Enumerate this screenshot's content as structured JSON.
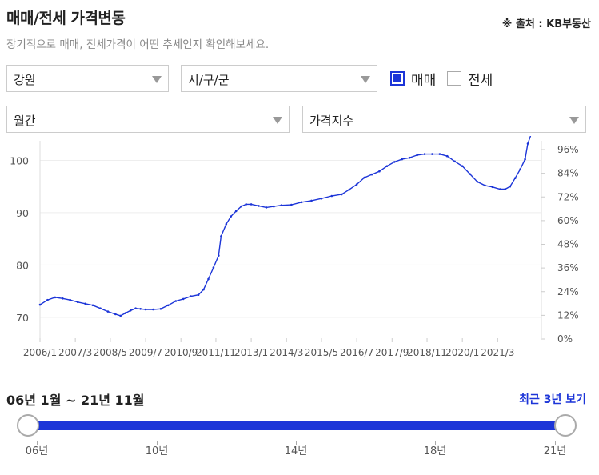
{
  "header": {
    "title": "매매/전세 가격변동",
    "source": "※ 출처 : KB부동산",
    "subtitle": "장기적으로 매매, 전세가격이 어떤 추세인지 확인해보세요."
  },
  "filters": {
    "region": "강원",
    "district": "시/구/군",
    "period": "월간",
    "index_type": "가격지수"
  },
  "checkboxes": [
    {
      "label": "매매",
      "checked": true
    },
    {
      "label": "전세",
      "checked": false
    }
  ],
  "colors": {
    "accent": "#1c35d8",
    "grid": "#eeeeee",
    "text": "#555555"
  },
  "chart_data": {
    "type": "line",
    "title": "",
    "xlabel": "",
    "ylabel": "",
    "grid": true,
    "xlim": [
      2006.0,
      2021.83
    ],
    "ylim": [
      66,
      106
    ],
    "y_ticks": [
      70,
      80,
      90,
      100
    ],
    "y2_ticks": [
      "0%",
      "12%",
      "24%",
      "36%",
      "48%",
      "60%",
      "72%",
      "84%",
      "96%"
    ],
    "x_ticks": [
      {
        "label": "2006/1",
        "x": 2006.0
      },
      {
        "label": "2007/3",
        "x": 2007.17
      },
      {
        "label": "2008/5",
        "x": 2008.33
      },
      {
        "label": "2009/7",
        "x": 2009.5
      },
      {
        "label": "2010/9",
        "x": 2010.67
      },
      {
        "label": "2011/11",
        "x": 2011.83
      },
      {
        "label": "2013/1",
        "x": 2013.0
      },
      {
        "label": "2014/3",
        "x": 2014.17
      },
      {
        "label": "2015/5",
        "x": 2015.33
      },
      {
        "label": "2016/7",
        "x": 2016.5
      },
      {
        "label": "2017/9",
        "x": 2017.67
      },
      {
        "label": "2018/11",
        "x": 2018.83
      },
      {
        "label": "2020/1",
        "x": 2020.0
      },
      {
        "label": "2021/3",
        "x": 2021.17
      }
    ],
    "series": [
      {
        "name": "매매",
        "points": [
          [
            2006.0,
            72.4
          ],
          [
            2006.25,
            73.3
          ],
          [
            2006.5,
            73.8
          ],
          [
            2006.75,
            73.6
          ],
          [
            2007.0,
            73.3
          ],
          [
            2007.25,
            72.9
          ],
          [
            2007.5,
            72.6
          ],
          [
            2007.75,
            72.3
          ],
          [
            2008.0,
            71.7
          ],
          [
            2008.25,
            71.1
          ],
          [
            2008.5,
            70.6
          ],
          [
            2008.67,
            70.3
          ],
          [
            2008.83,
            70.8
          ],
          [
            2009.0,
            71.3
          ],
          [
            2009.17,
            71.7
          ],
          [
            2009.33,
            71.6
          ],
          [
            2009.5,
            71.5
          ],
          [
            2009.75,
            71.5
          ],
          [
            2010.0,
            71.6
          ],
          [
            2010.25,
            72.3
          ],
          [
            2010.5,
            73.1
          ],
          [
            2010.75,
            73.5
          ],
          [
            2011.0,
            74.0
          ],
          [
            2011.25,
            74.3
          ],
          [
            2011.42,
            75.3
          ],
          [
            2011.58,
            77.3
          ],
          [
            2011.75,
            79.5
          ],
          [
            2011.92,
            81.8
          ],
          [
            2012.0,
            85.5
          ],
          [
            2012.17,
            87.8
          ],
          [
            2012.33,
            89.3
          ],
          [
            2012.5,
            90.3
          ],
          [
            2012.67,
            91.2
          ],
          [
            2012.83,
            91.6
          ],
          [
            2013.0,
            91.6
          ],
          [
            2013.25,
            91.3
          ],
          [
            2013.5,
            91.0
          ],
          [
            2013.75,
            91.2
          ],
          [
            2014.0,
            91.4
          ],
          [
            2014.33,
            91.5
          ],
          [
            2014.67,
            92.0
          ],
          [
            2015.0,
            92.3
          ],
          [
            2015.33,
            92.7
          ],
          [
            2015.67,
            93.2
          ],
          [
            2016.0,
            93.5
          ],
          [
            2016.25,
            94.4
          ],
          [
            2016.5,
            95.4
          ],
          [
            2016.75,
            96.7
          ],
          [
            2017.0,
            97.3
          ],
          [
            2017.25,
            97.9
          ],
          [
            2017.5,
            98.9
          ],
          [
            2017.75,
            99.7
          ],
          [
            2018.0,
            100.2
          ],
          [
            2018.25,
            100.5
          ],
          [
            2018.5,
            101.0
          ],
          [
            2018.75,
            101.2
          ],
          [
            2019.0,
            101.2
          ],
          [
            2019.25,
            101.2
          ],
          [
            2019.5,
            100.8
          ],
          [
            2019.75,
            99.8
          ],
          [
            2020.0,
            98.9
          ],
          [
            2020.25,
            97.4
          ],
          [
            2020.5,
            95.9
          ],
          [
            2020.75,
            95.2
          ],
          [
            2021.0,
            94.9
          ],
          [
            2021.25,
            94.5
          ],
          [
            2021.42,
            94.5
          ],
          [
            2021.58,
            95.0
          ],
          [
            2021.75,
            96.6
          ],
          [
            2021.92,
            98.3
          ],
          [
            2022.08,
            100.2
          ],
          [
            2022.17,
            103.2
          ],
          [
            2022.33,
            105.8
          ]
        ]
      }
    ]
  },
  "range": {
    "label": "06년 1월 ~ 21년 11월",
    "recent_button": "최근 3년 보기",
    "ticks": [
      "06년",
      "10년",
      "14년",
      "18년",
      "21년"
    ]
  }
}
